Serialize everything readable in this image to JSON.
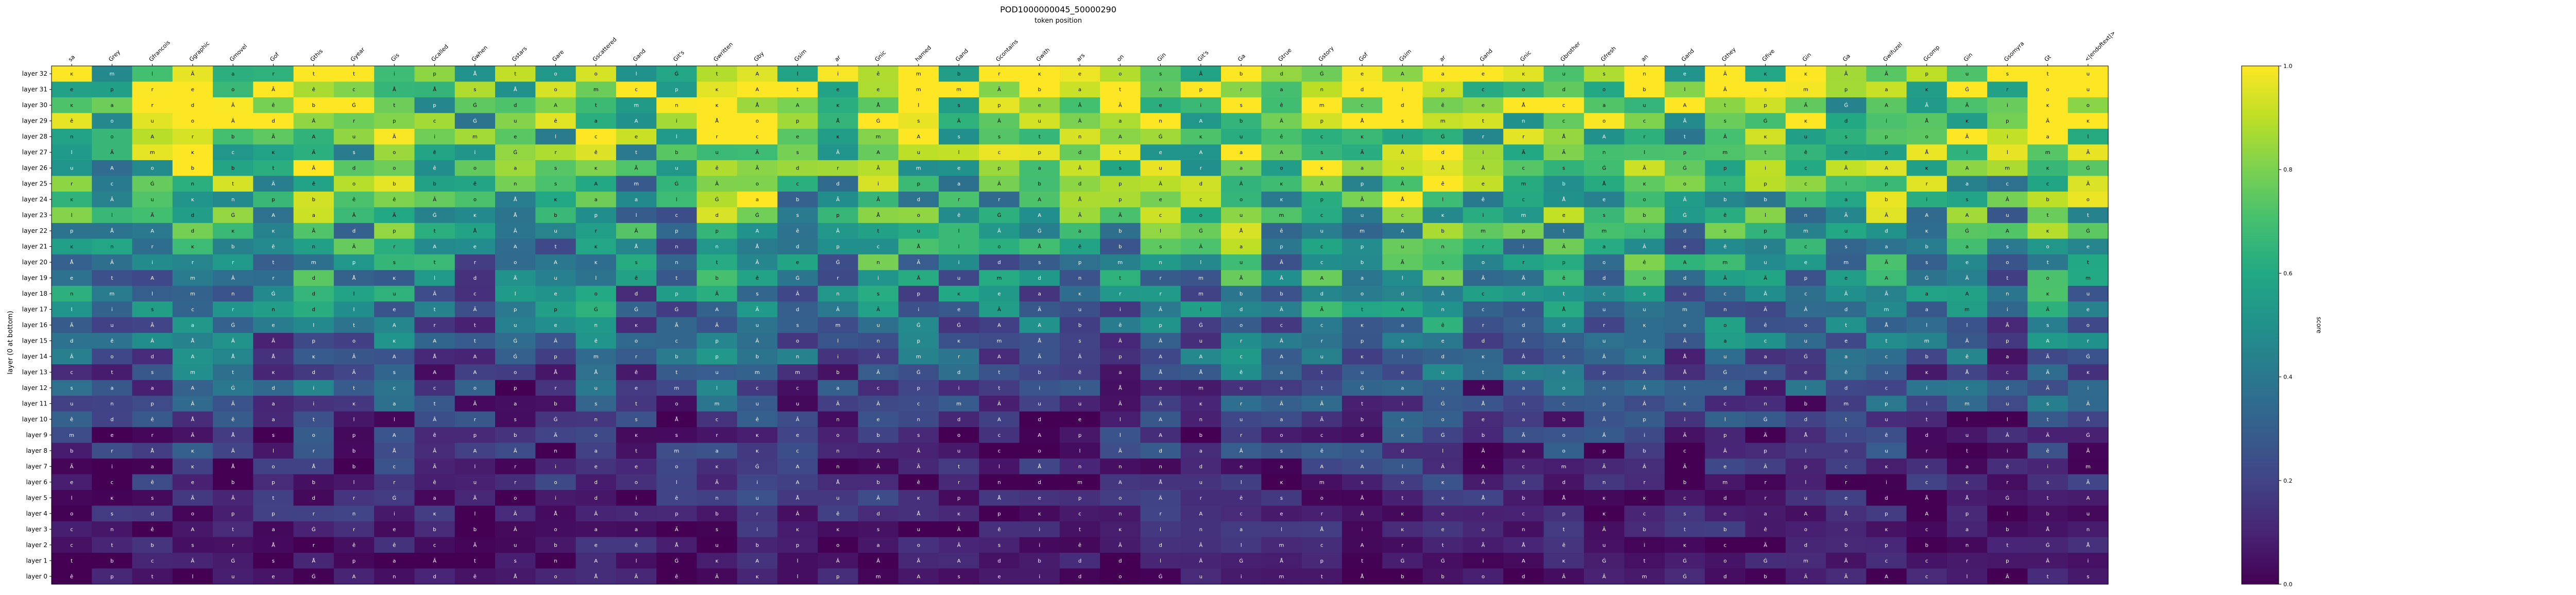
{
  "chart_data": {
    "type": "heatmap",
    "title": "POD1000000045_50000290",
    "subtitle": "token position",
    "ylabel": "layer (0 at bottom)",
    "colorbar_label": "score",
    "colorbar_ticks": [
      "0.0",
      "0.2",
      "0.4",
      "0.6",
      "0.8",
      "1.0"
    ],
    "vmin": 0.0,
    "vmax": 1.0,
    "colormap": "viridis",
    "tokens": [
      "sa",
      "Grey",
      "Gfrancois",
      "Ggraphic",
      "Gmovel",
      "Gof",
      "Gthis",
      "Gyear",
      "Gis",
      "Gcalled",
      "Gwhen",
      "Gstars",
      "Gare",
      "Gscattered",
      "Gand",
      "Git's",
      "Gwritten",
      "Gby",
      "Gsim",
      "ar",
      "Gnic",
      "hamed",
      "Gand",
      "Gcontains",
      "Gwith",
      "ars",
      "on",
      "Gin",
      "Git's",
      "Ga",
      "Gtrue",
      "Gstory",
      "Gof",
      "Gsim",
      "ar",
      "Gand",
      "Gnic",
      "Gbrother",
      "Gfresh",
      "an",
      "Gand",
      "Gthey",
      "Gfive",
      "Gin",
      "Ga",
      "Gwifuzel",
      "Gcomp",
      "Gin",
      "Gsomyra",
      "Gt",
      "<|endoftext|>"
    ],
    "layers": [
      "layer 32",
      "layer 31",
      "layer 30",
      "layer 29",
      "layer 28",
      "layer 27",
      "layer 26",
      "layer 25",
      "layer 24",
      "layer 23",
      "layer 22",
      "layer 21",
      "layer 20",
      "layer 19",
      "layer 18",
      "layer 17",
      "layer 16",
      "layer 15",
      "layer 14",
      "layer 13",
      "layer 12",
      "layer 11",
      "layer 10",
      "layer 9",
      "layer 8",
      "layer 7",
      "layer 6",
      "layer 5",
      "layer 4",
      "layer 3",
      "layer 2",
      "layer 1",
      "layer 0"
    ],
    "cell_glyphs": [
      "a",
      "e",
      "t",
      "A",
      "i",
      "n",
      "s",
      "m",
      "c",
      "Ã",
      "Ä",
      "ê",
      "r",
      "l",
      "Ġ",
      "p",
      "o",
      "ĸ",
      "Â",
      "d",
      "Å",
      "u",
      "b"
    ],
    "grid": false
  }
}
